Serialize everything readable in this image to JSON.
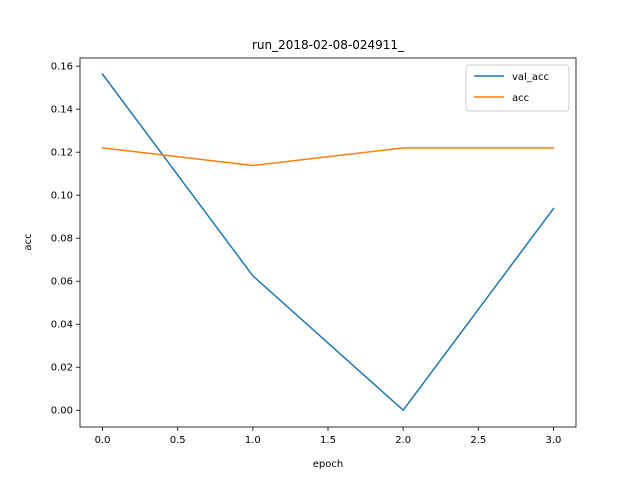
{
  "chart_data": {
    "type": "line",
    "title": "run_2018-02-08-024911_",
    "xlabel": "epoch",
    "ylabel": "acc",
    "xlim": [
      -0.15,
      3.15
    ],
    "ylim": [
      -0.0078,
      0.1638
    ],
    "xticks": [
      0.0,
      0.5,
      1.0,
      1.5,
      2.0,
      2.5,
      3.0
    ],
    "xtick_labels": [
      "0.0",
      "0.5",
      "1.0",
      "1.5",
      "2.0",
      "2.5",
      "3.0"
    ],
    "yticks": [
      0.0,
      0.02,
      0.04,
      0.06,
      0.08,
      0.1,
      0.12,
      0.14,
      0.16
    ],
    "ytick_labels": [
      "0.00",
      "0.02",
      "0.04",
      "0.06",
      "0.08",
      "0.10",
      "0.12",
      "0.14",
      "0.16"
    ],
    "x": [
      0,
      1,
      2,
      3
    ],
    "series": [
      {
        "name": "val_acc",
        "color": "#1f77b4",
        "values": [
          0.1563,
          0.0625,
          0.0,
          0.0938
        ]
      },
      {
        "name": "acc",
        "color": "#ff7f0e",
        "values": [
          0.122,
          0.1138,
          0.122,
          0.122
        ]
      }
    ],
    "grid": false,
    "legend_position": "upper right"
  }
}
